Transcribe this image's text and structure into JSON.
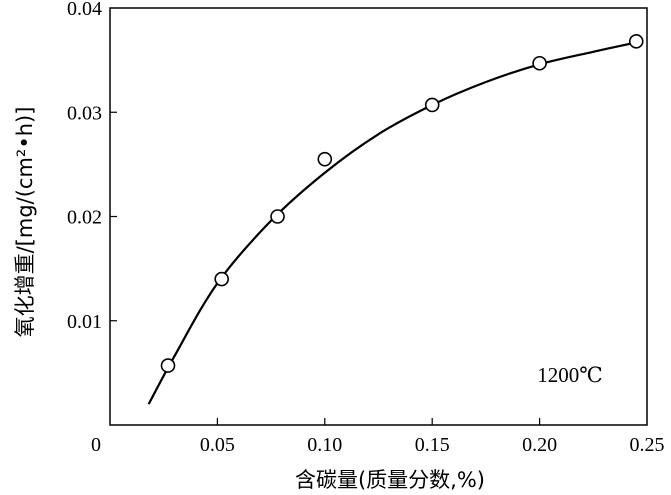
{
  "chart_data": {
    "type": "scatter",
    "title": "",
    "xlabel": "含碳量(质量分数,%)",
    "ylabel": "氧化增重/[mg/(cm²•h)]",
    "xlim": [
      0,
      0.25
    ],
    "ylim": [
      0,
      0.04
    ],
    "x_ticks": [
      0,
      0.05,
      0.1,
      0.15,
      0.2,
      0.25
    ],
    "x_tick_labels": [
      "0",
      "0.05",
      "0.10",
      "0.15",
      "0.20",
      "0.25"
    ],
    "y_ticks": [
      0.01,
      0.02,
      0.03,
      0.04
    ],
    "y_tick_labels": [
      "0.01",
      "0.02",
      "0.03",
      "0.04"
    ],
    "grid": false,
    "legend": "none",
    "annotation": "1200℃",
    "series": [
      {
        "marker": "open-circle",
        "x": [
          0.027,
          0.052,
          0.078,
          0.1,
          0.15,
          0.2,
          0.245
        ],
        "y": [
          0.0057,
          0.014,
          0.02,
          0.0255,
          0.0307,
          0.0347,
          0.0368
        ]
      },
      {
        "marker": "none",
        "line": "smooth",
        "x": [
          0.018,
          0.03,
          0.05,
          0.075,
          0.1,
          0.125,
          0.15,
          0.175,
          0.2,
          0.225,
          0.245
        ],
        "y": [
          0.002,
          0.0066,
          0.0136,
          0.0196,
          0.0242,
          0.0279,
          0.0307,
          0.0329,
          0.0346,
          0.0358,
          0.0367
        ]
      }
    ]
  }
}
